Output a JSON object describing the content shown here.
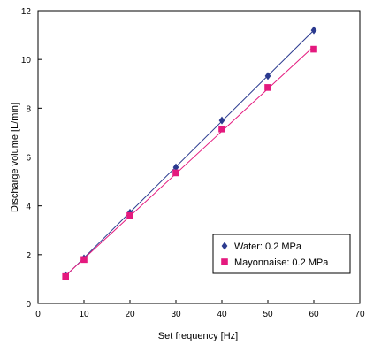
{
  "chart_data": {
    "type": "scatter",
    "title": "",
    "xlabel": "Set frequency [Hz]",
    "ylabel": "Discharge volume [L/min]",
    "xlim": [
      0,
      70
    ],
    "ylim": [
      0,
      12
    ],
    "xticks": [
      0,
      10,
      20,
      30,
      40,
      50,
      60,
      70
    ],
    "yticks": [
      0,
      2,
      4,
      6,
      8,
      10,
      12
    ],
    "grid": "none",
    "legend_position": "bottom-right",
    "trendlines": true,
    "series": [
      {
        "name": "Water: 0.2 MPa",
        "marker": "diamond",
        "color": "#2b3a8f",
        "x": [
          6,
          10,
          20,
          30,
          40,
          50,
          60
        ],
        "y": [
          1.15,
          1.85,
          3.72,
          5.58,
          7.5,
          9.32,
          11.2
        ]
      },
      {
        "name": "Mayonnaise: 0.2 MPa",
        "marker": "square",
        "color": "#e4197e",
        "x": [
          6,
          10,
          20,
          30,
          40,
          50,
          60
        ],
        "y": [
          1.1,
          1.8,
          3.6,
          5.35,
          7.15,
          8.85,
          10.42
        ]
      }
    ]
  }
}
